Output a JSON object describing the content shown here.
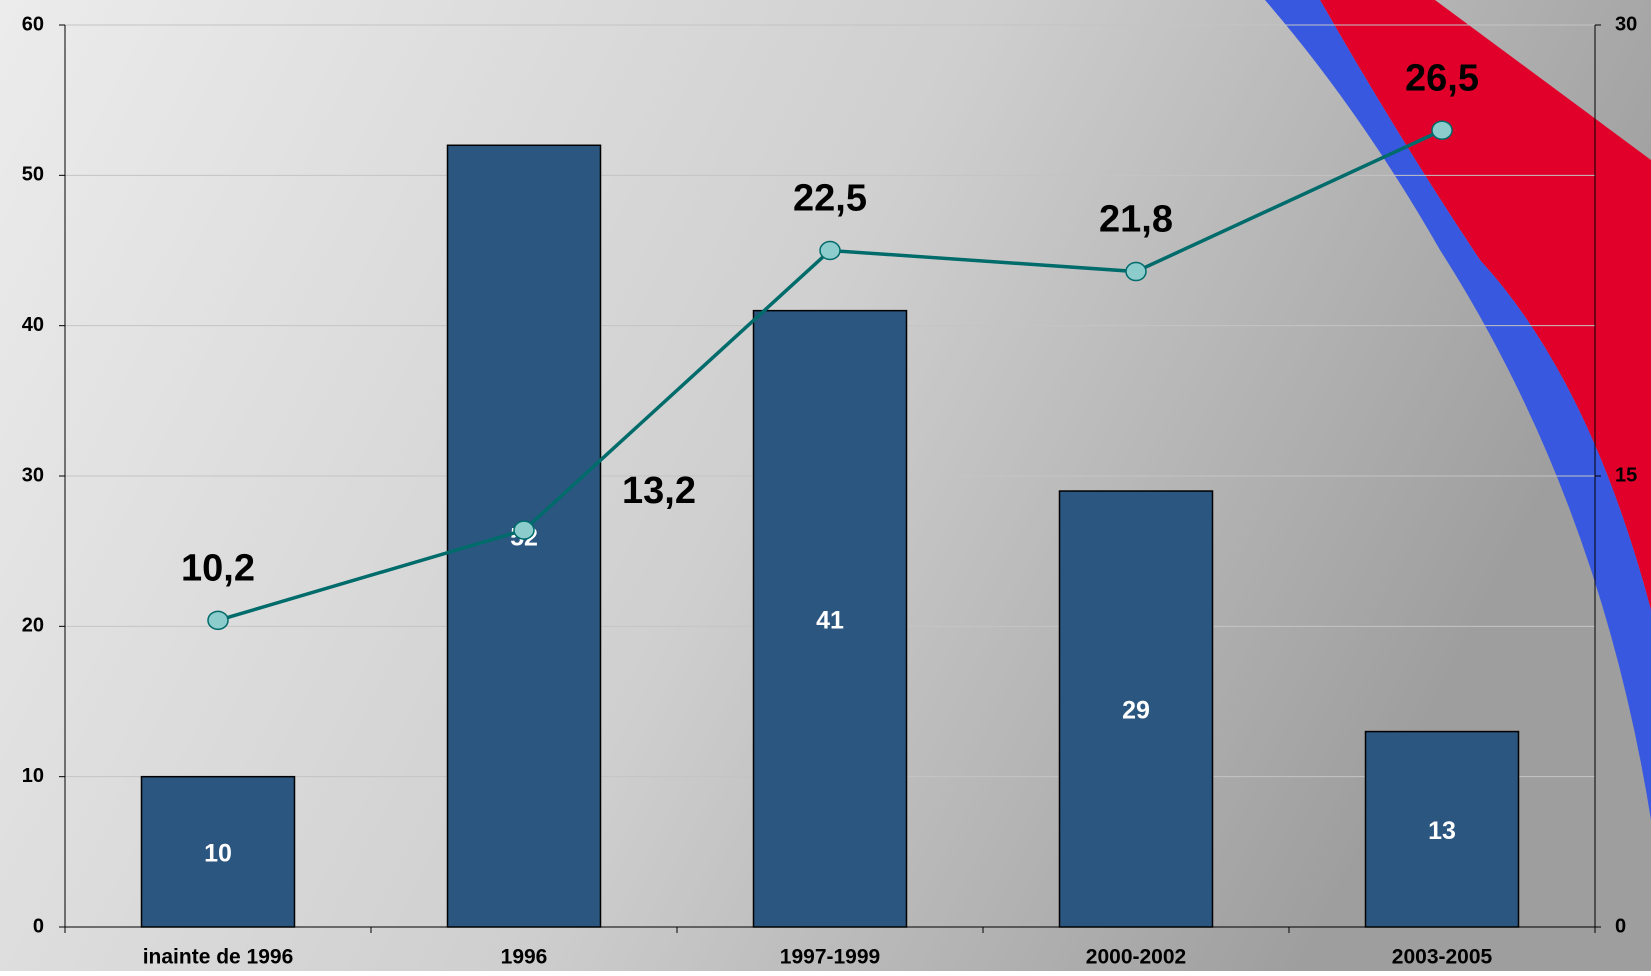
{
  "chart_data": {
    "type": "combo",
    "categories": [
      "inainte de 1996",
      "1996",
      "1997-1999",
      "2000-2002",
      "2003-2005"
    ],
    "series": [
      {
        "type": "bar",
        "color": "#2b5680",
        "values": [
          10,
          52,
          41,
          29,
          13
        ]
      },
      {
        "type": "line",
        "axis": "y2",
        "color": "#006b6b",
        "marker_color": "#8ccccc",
        "values": [
          10.2,
          13.2,
          22.5,
          21.8,
          26.5
        ],
        "value_labels": [
          "10,2",
          "13,2",
          "22,5",
          "21,8",
          "26,5"
        ]
      }
    ],
    "ylim": [
      0,
      60
    ],
    "yticks": [
      0,
      10,
      20,
      30,
      40,
      50,
      60
    ],
    "y2lim": [
      0,
      30
    ],
    "y2ticks": [
      0,
      15,
      30
    ],
    "grid": true
  }
}
